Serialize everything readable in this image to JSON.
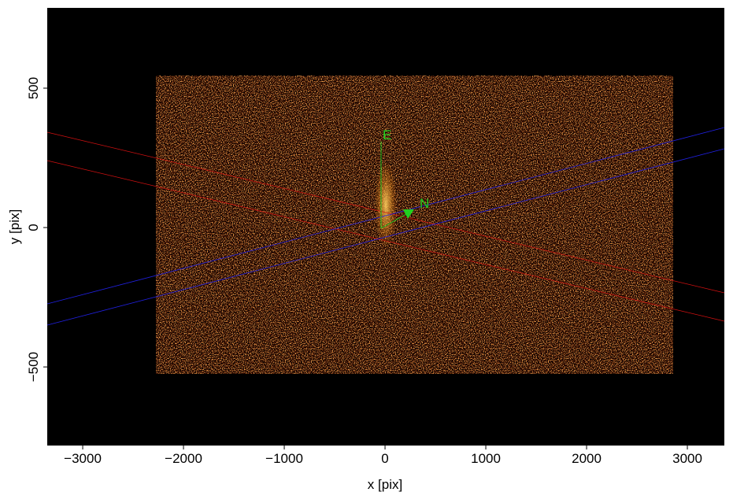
{
  "chart_data": {
    "type": "image",
    "xlabel": "x [pix]",
    "ylabel": "y [pix]",
    "xlim": [
      -3352,
      3367
    ],
    "ylim": [
      -782,
      788
    ],
    "xticks": [
      {
        "value": -3000,
        "label": "−3000"
      },
      {
        "value": -2000,
        "label": "−2000"
      },
      {
        "value": -1000,
        "label": "−1000"
      },
      0,
      1000,
      2000,
      3000
    ],
    "yticks": [
      {
        "value": -500,
        "label": "−500"
      },
      0,
      500
    ],
    "annotations": [
      "E",
      "N"
    ]
  }
}
